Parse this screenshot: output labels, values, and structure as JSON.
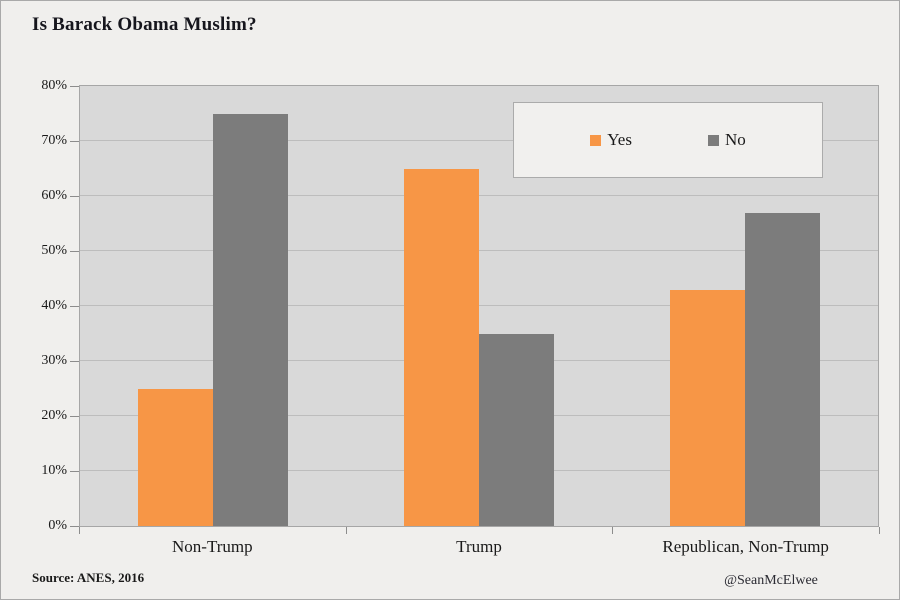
{
  "title": "Is Barack Obama Muslim?",
  "source": "Source: ANES, 2016",
  "attribution": "@SeanMcElwee",
  "colors": {
    "yes_bar": "#F79646",
    "no_bar": "#7C7C7C",
    "plot_background": "#D9D9D9",
    "page_background": "#F0EFED",
    "gridline": "#BDBDBD",
    "legend_background": "#F1F0EE",
    "border": "#A6A6A6",
    "text": "#1A1A1A"
  },
  "chart_data": {
    "type": "bar",
    "title": "Is Barack Obama Muslim?",
    "categories": [
      "Non-Trump",
      "Trump",
      "Republican, Non-Trump"
    ],
    "series": [
      {
        "name": "Yes",
        "color": "#F79646",
        "values": [
          25,
          65,
          43
        ]
      },
      {
        "name": "No",
        "color": "#7C7C7C",
        "values": [
          75,
          35,
          57
        ]
      }
    ],
    "xlabel": "",
    "ylabel": "",
    "ylim": [
      0,
      80
    ],
    "ytick_step": 10,
    "ytick_labels": [
      "0%",
      "10%",
      "20%",
      "30%",
      "40%",
      "50%",
      "60%",
      "70%",
      "80%"
    ],
    "grid": true,
    "legend_position": "inside-top-right",
    "source": "Source: ANES, 2016",
    "attribution": "@SeanMcElwee"
  }
}
